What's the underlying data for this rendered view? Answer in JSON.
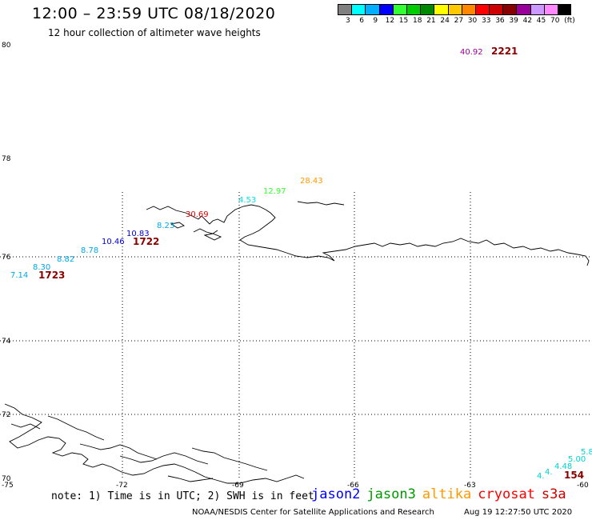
{
  "header": {
    "title": "12:00 – 23:59 UTC 08/18/2020",
    "subtitle": "12 hour collection of altimeter wave heights"
  },
  "legend": {
    "colors": [
      "#808080",
      "#00ffff",
      "#00b0ff",
      "#0000ff",
      "#33ff33",
      "#00cc00",
      "#008800",
      "#ffff00",
      "#ffc800",
      "#ff8800",
      "#ff0000",
      "#cc0000",
      "#880000",
      "#990099",
      "#cc99ff",
      "#ff88ff",
      "#000000"
    ],
    "ticks": [
      "3",
      "6",
      "9",
      "12",
      "15",
      "18",
      "21",
      "24",
      "27",
      "30",
      "33",
      "36",
      "39",
      "42",
      "45",
      "70",
      "(ft)"
    ]
  },
  "axes": {
    "lat_labels": [
      "80",
      "78",
      "76",
      "74",
      "72",
      "70"
    ],
    "lon_labels": [
      "-75",
      "-72",
      "-69",
      "-66",
      "-63",
      "-60"
    ]
  },
  "observations": [
    {
      "value": "40.92",
      "color": "#990099"
    },
    {
      "value": "28.43",
      "color": "#ff9900"
    },
    {
      "value": "12.97",
      "color": "#33ff33"
    },
    {
      "value": "4.53",
      "color": "#00e0e0"
    },
    {
      "value": "30.69",
      "color": "#dd0000"
    },
    {
      "value": "8.23",
      "color": "#00a8e8"
    },
    {
      "value": "10.83",
      "color": "#0000cc"
    },
    {
      "value": "10.46",
      "color": "#0000cc"
    },
    {
      "value": "8.78",
      "color": "#00a8e8"
    },
    {
      "value": "8.82",
      "color": "#00a8e8"
    },
    {
      "value": "8.30",
      "color": "#00a8e8"
    },
    {
      "value": "7.14",
      "color": "#00a8e8"
    },
    {
      "value": "4.48",
      "color": "#00d0d0"
    },
    {
      "value": "5.00",
      "color": "#00d0d0"
    },
    {
      "value": "5.8",
      "color": "#00d0d0"
    }
  ],
  "times": [
    {
      "value": "2221",
      "color": "#880000"
    },
    {
      "value": "1722",
      "color": "#880000"
    },
    {
      "value": "1723",
      "color": "#880000"
    },
    {
      "value": "154",
      "color": "#880000"
    }
  ],
  "note": "note: 1) Time is in UTC; 2) SWH is in feet",
  "satellites": [
    {
      "name": "jason2",
      "color": "#0000ff"
    },
    {
      "name": "jason3",
      "color": "#009900"
    },
    {
      "name": "altika",
      "color": "#ff9900"
    },
    {
      "name": "cryosat",
      "color": "#ff0000"
    },
    {
      "name": "s3a",
      "color": "#cc0000"
    }
  ],
  "footer": {
    "credit": "NOAA/NESDIS Center for Satellite Applications and Research",
    "timestamp": "Aug 19 12:27:50 UTC 2020"
  }
}
